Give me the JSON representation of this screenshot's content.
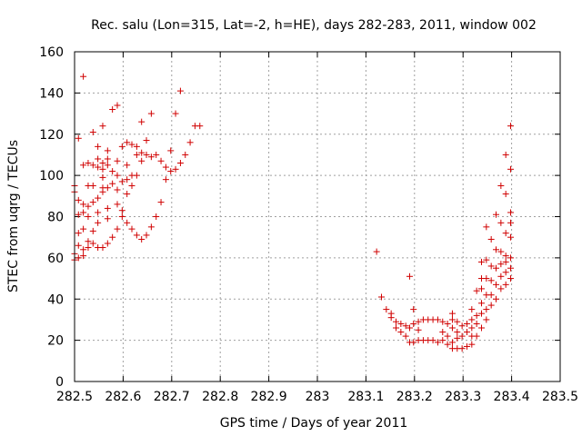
{
  "chart_data": {
    "type": "scatter",
    "title": "Rec. salu (Lon=315, Lat=-2, h=HE), days 282-283, 2011, window 002",
    "xlabel": "GPS time / Days of year 2011",
    "ylabel": "STEC from uqrg / TECUs",
    "xlim": [
      282.5,
      283.5
    ],
    "ylim": [
      0,
      160
    ],
    "xticks": [
      "282.5",
      "282.6",
      "282.7",
      "282.8",
      "282.9",
      "283",
      "283.1",
      "283.2",
      "283.3",
      "283.4",
      "283.5"
    ],
    "yticks": [
      "0",
      "20",
      "40",
      "60",
      "80",
      "100",
      "120",
      "140",
      "160"
    ],
    "grid": true,
    "marker": "plus",
    "color": "#d00000",
    "points": [
      [
        282.5,
        95
      ],
      [
        282.5,
        92
      ],
      [
        282.5,
        62
      ],
      [
        282.5,
        59
      ],
      [
        282.508,
        118
      ],
      [
        282.508,
        88
      ],
      [
        282.508,
        81
      ],
      [
        282.508,
        72
      ],
      [
        282.508,
        66
      ],
      [
        282.508,
        60
      ],
      [
        282.518,
        148
      ],
      [
        282.518,
        105
      ],
      [
        282.518,
        86
      ],
      [
        282.518,
        82
      ],
      [
        282.518,
        74
      ],
      [
        282.518,
        64
      ],
      [
        282.518,
        61
      ],
      [
        282.528,
        106
      ],
      [
        282.528,
        95
      ],
      [
        282.528,
        85
      ],
      [
        282.528,
        80
      ],
      [
        282.528,
        68
      ],
      [
        282.528,
        65
      ],
      [
        282.538,
        121
      ],
      [
        282.538,
        105
      ],
      [
        282.538,
        95
      ],
      [
        282.538,
        87
      ],
      [
        282.538,
        73
      ],
      [
        282.538,
        67
      ],
      [
        282.548,
        114
      ],
      [
        282.548,
        108
      ],
      [
        282.548,
        104
      ],
      [
        282.548,
        89
      ],
      [
        282.548,
        82
      ],
      [
        282.548,
        77
      ],
      [
        282.548,
        65
      ],
      [
        282.558,
        124
      ],
      [
        282.558,
        106
      ],
      [
        282.558,
        103
      ],
      [
        282.558,
        99
      ],
      [
        282.558,
        94
      ],
      [
        282.558,
        92
      ],
      [
        282.558,
        65
      ],
      [
        282.568,
        112
      ],
      [
        282.568,
        108
      ],
      [
        282.568,
        105
      ],
      [
        282.568,
        94
      ],
      [
        282.568,
        84
      ],
      [
        282.568,
        79
      ],
      [
        282.568,
        67
      ],
      [
        282.578,
        132
      ],
      [
        282.578,
        102
      ],
      [
        282.578,
        96
      ],
      [
        282.578,
        70
      ],
      [
        282.588,
        134
      ],
      [
        282.588,
        107
      ],
      [
        282.588,
        100
      ],
      [
        282.588,
        93
      ],
      [
        282.588,
        86
      ],
      [
        282.588,
        74
      ],
      [
        282.598,
        114
      ],
      [
        282.598,
        97
      ],
      [
        282.598,
        83
      ],
      [
        282.598,
        80
      ],
      [
        282.608,
        116
      ],
      [
        282.608,
        105
      ],
      [
        282.608,
        98
      ],
      [
        282.608,
        91
      ],
      [
        282.608,
        77
      ],
      [
        282.618,
        115
      ],
      [
        282.618,
        100
      ],
      [
        282.618,
        95
      ],
      [
        282.618,
        74
      ],
      [
        282.628,
        114
      ],
      [
        282.628,
        110
      ],
      [
        282.628,
        100
      ],
      [
        282.628,
        71
      ],
      [
        282.638,
        126
      ],
      [
        282.638,
        111
      ],
      [
        282.638,
        107
      ],
      [
        282.638,
        69
      ],
      [
        282.648,
        117
      ],
      [
        282.648,
        110
      ],
      [
        282.648,
        71
      ],
      [
        282.658,
        130
      ],
      [
        282.658,
        109
      ],
      [
        282.658,
        75
      ],
      [
        282.668,
        110
      ],
      [
        282.668,
        80
      ],
      [
        282.678,
        107
      ],
      [
        282.678,
        87
      ],
      [
        282.688,
        98
      ],
      [
        282.688,
        104
      ],
      [
        282.698,
        112
      ],
      [
        282.698,
        102
      ],
      [
        282.708,
        130
      ],
      [
        282.708,
        103
      ],
      [
        282.718,
        141
      ],
      [
        282.718,
        106
      ],
      [
        282.728,
        110
      ],
      [
        282.738,
        116
      ],
      [
        282.748,
        124
      ],
      [
        282.758,
        124
      ],
      [
        283.122,
        63
      ],
      [
        283.132,
        41
      ],
      [
        283.142,
        35
      ],
      [
        283.152,
        33
      ],
      [
        283.152,
        31
      ],
      [
        283.162,
        29
      ],
      [
        283.162,
        26
      ],
      [
        283.172,
        28
      ],
      [
        283.172,
        24
      ],
      [
        283.182,
        27
      ],
      [
        283.182,
        22
      ],
      [
        283.19,
        51
      ],
      [
        283.19,
        26
      ],
      [
        283.19,
        19
      ],
      [
        283.198,
        35
      ],
      [
        283.198,
        28
      ],
      [
        283.198,
        19
      ],
      [
        283.208,
        29
      ],
      [
        283.208,
        25
      ],
      [
        283.208,
        20
      ],
      [
        283.218,
        30
      ],
      [
        283.218,
        20
      ],
      [
        283.228,
        30
      ],
      [
        283.228,
        20
      ],
      [
        283.238,
        30
      ],
      [
        283.238,
        20
      ],
      [
        283.248,
        30
      ],
      [
        283.248,
        19
      ],
      [
        283.258,
        29
      ],
      [
        283.258,
        24
      ],
      [
        283.258,
        20
      ],
      [
        283.268,
        28
      ],
      [
        283.268,
        22
      ],
      [
        283.268,
        18
      ],
      [
        283.278,
        33
      ],
      [
        283.278,
        30
      ],
      [
        283.278,
        26
      ],
      [
        283.278,
        19
      ],
      [
        283.278,
        16
      ],
      [
        283.288,
        29
      ],
      [
        283.288,
        24
      ],
      [
        283.288,
        21
      ],
      [
        283.288,
        16
      ],
      [
        283.298,
        27
      ],
      [
        283.298,
        22
      ],
      [
        283.298,
        16
      ],
      [
        283.308,
        28
      ],
      [
        283.308,
        24
      ],
      [
        283.308,
        17
      ],
      [
        283.318,
        35
      ],
      [
        283.318,
        30
      ],
      [
        283.318,
        26
      ],
      [
        283.318,
        22
      ],
      [
        283.318,
        18
      ],
      [
        283.328,
        44
      ],
      [
        283.328,
        32
      ],
      [
        283.328,
        28
      ],
      [
        283.328,
        22
      ],
      [
        283.338,
        58
      ],
      [
        283.338,
        50
      ],
      [
        283.338,
        45
      ],
      [
        283.338,
        38
      ],
      [
        283.338,
        33
      ],
      [
        283.338,
        26
      ],
      [
        283.348,
        75
      ],
      [
        283.348,
        59
      ],
      [
        283.348,
        50
      ],
      [
        283.348,
        42
      ],
      [
        283.348,
        35
      ],
      [
        283.348,
        30
      ],
      [
        283.358,
        69
      ],
      [
        283.358,
        56
      ],
      [
        283.358,
        49
      ],
      [
        283.358,
        42
      ],
      [
        283.358,
        37
      ],
      [
        283.368,
        81
      ],
      [
        283.368,
        64
      ],
      [
        283.368,
        55
      ],
      [
        283.368,
        47
      ],
      [
        283.368,
        40
      ],
      [
        283.378,
        95
      ],
      [
        283.378,
        77
      ],
      [
        283.378,
        63
      ],
      [
        283.378,
        57
      ],
      [
        283.378,
        51
      ],
      [
        283.378,
        45
      ],
      [
        283.388,
        110
      ],
      [
        283.388,
        91
      ],
      [
        283.388,
        72
      ],
      [
        283.388,
        61
      ],
      [
        283.388,
        58
      ],
      [
        283.388,
        53
      ],
      [
        283.388,
        47
      ],
      [
        283.398,
        124
      ],
      [
        283.398,
        103
      ],
      [
        283.398,
        82
      ],
      [
        283.398,
        77
      ],
      [
        283.398,
        70
      ],
      [
        283.398,
        60
      ],
      [
        283.398,
        55
      ],
      [
        283.398,
        50
      ]
    ]
  }
}
